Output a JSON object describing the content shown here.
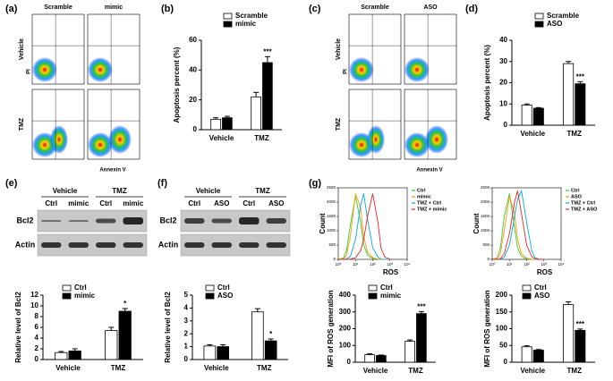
{
  "panel_labels": [
    "(a)",
    "(b)",
    "(c)",
    "(d)",
    "(e)",
    "(f)",
    "(g)"
  ],
  "flow_a": {
    "columns": [
      "Scramble",
      "mimic"
    ],
    "rows": [
      "Vehicle",
      "TMZ"
    ],
    "ylabel": "PI",
    "xlabel": "Annexin V"
  },
  "flow_c": {
    "columns": [
      "Scramble",
      "ASO"
    ],
    "rows": [
      "Vehicle",
      "TMZ"
    ],
    "ylabel": "PI",
    "xlabel": "Annexin V"
  },
  "blot_e": {
    "groups": [
      "Vehicle",
      "TMZ"
    ],
    "lanes": [
      "Ctrl",
      "mimic",
      "Ctrl",
      "mimic"
    ],
    "proteins": [
      "Bcl2",
      "Actin"
    ]
  },
  "blot_f": {
    "groups": [
      "Vehicle",
      "TMZ"
    ],
    "lanes": [
      "Ctrl",
      "ASO",
      "Ctrl",
      "ASO"
    ],
    "proteins": [
      "Bcl2",
      "Actin"
    ]
  },
  "chart_data": [
    {
      "type": "bar",
      "ylabel": "Apoptosis percent (%)",
      "categories": [
        "Vehicle",
        "TMZ"
      ],
      "series": [
        {
          "name": "Scramble",
          "color": "#ffffff",
          "values": [
            7,
            22
          ],
          "errors": [
            1,
            3
          ]
        },
        {
          "name": "mimic",
          "color": "#000000",
          "values": [
            8,
            45
          ],
          "errors": [
            1,
            4
          ]
        }
      ],
      "ylim": [
        0,
        60
      ],
      "yticks": [
        0,
        20,
        40,
        60
      ],
      "annotation": "***"
    },
    {
      "type": "bar",
      "ylabel": "Apoptosis percent (%)",
      "categories": [
        "Vehicle",
        "TMZ"
      ],
      "series": [
        {
          "name": "Scramble",
          "color": "#ffffff",
          "values": [
            9.5,
            29
          ],
          "errors": [
            0.5,
            1
          ]
        },
        {
          "name": "ASO",
          "color": "#000000",
          "values": [
            8,
            19.5
          ],
          "errors": [
            0.3,
            1
          ]
        }
      ],
      "ylim": [
        0,
        40
      ],
      "yticks": [
        0,
        10,
        20,
        30,
        40
      ],
      "annotation": "***"
    },
    {
      "type": "bar",
      "ylabel": "Relative level of Bcl2",
      "categories": [
        "Vehicle",
        "TMZ"
      ],
      "series": [
        {
          "name": "Ctrl",
          "color": "#ffffff",
          "values": [
            1.3,
            5.4
          ],
          "errors": [
            0.2,
            0.6
          ]
        },
        {
          "name": "mimic",
          "color": "#000000",
          "values": [
            1.6,
            9.0
          ],
          "errors": [
            0.4,
            0.5
          ]
        }
      ],
      "ylim": [
        0,
        12
      ],
      "yticks": [
        0,
        2,
        4,
        6,
        8,
        10,
        12
      ],
      "annotation": "*"
    },
    {
      "type": "bar",
      "ylabel": "Relative level of Bcl2",
      "categories": [
        "Vehicle",
        "TMZ"
      ],
      "series": [
        {
          "name": "Ctrl",
          "color": "#ffffff",
          "values": [
            1.05,
            3.7
          ],
          "errors": [
            0.1,
            0.25
          ]
        },
        {
          "name": "ASO",
          "color": "#000000",
          "values": [
            1.0,
            1.45
          ],
          "errors": [
            0.15,
            0.15
          ]
        }
      ],
      "ylim": [
        0,
        5
      ],
      "yticks": [
        0,
        1,
        2,
        3,
        4,
        5
      ],
      "annotation": "*"
    },
    {
      "type": "bar",
      "ylabel": "MFI of ROS generation",
      "categories": [
        "Vehicle",
        "TMZ"
      ],
      "series": [
        {
          "name": "Ctrl",
          "color": "#ffffff",
          "values": [
            45,
            125
          ],
          "errors": [
            5,
            8
          ]
        },
        {
          "name": "mimic",
          "color": "#000000",
          "values": [
            40,
            290
          ],
          "errors": [
            3,
            12
          ]
        }
      ],
      "ylim": [
        0,
        400
      ],
      "yticks": [
        0,
        100,
        200,
        300,
        400
      ],
      "annotation": "***"
    },
    {
      "type": "bar",
      "ylabel": "MFI of ROS generation",
      "categories": [
        "Vehicle",
        "TMZ"
      ],
      "series": [
        {
          "name": "Ctrl",
          "color": "#ffffff",
          "values": [
            46,
            172
          ],
          "errors": [
            3,
            8
          ]
        },
        {
          "name": "ASO",
          "color": "#000000",
          "values": [
            36,
            95
          ],
          "errors": [
            2,
            4
          ]
        }
      ],
      "ylim": [
        0,
        200
      ],
      "yticks": [
        0,
        50,
        100,
        150,
        200
      ],
      "annotation": "***"
    },
    {
      "type": "line",
      "xlabel": "ROS",
      "ylabel": "Count",
      "log_x": true,
      "x": [
        1,
        2,
        3,
        5,
        10,
        20,
        30,
        50,
        100,
        200,
        300,
        500,
        1000
      ],
      "series": [
        {
          "name": "Ctrl",
          "color": "#33cc33",
          "values": [
            0,
            50,
            300,
            1200,
            2200,
            1300,
            500,
            150,
            30,
            5,
            0,
            0,
            0
          ]
        },
        {
          "name": "mimic",
          "color": "#ff9900",
          "values": [
            0,
            20,
            150,
            800,
            2300,
            1800,
            800,
            250,
            60,
            10,
            0,
            0,
            0
          ]
        },
        {
          "name": "TMZ + Ctrl",
          "color": "#00aadd",
          "values": [
            0,
            0,
            20,
            100,
            700,
            1900,
            2300,
            1400,
            400,
            80,
            10,
            0,
            0
          ]
        },
        {
          "name": "TMZ + mimic",
          "color": "#ee2222",
          "values": [
            0,
            0,
            0,
            10,
            60,
            300,
            700,
            1500,
            2300,
            1300,
            400,
            80,
            10
          ]
        }
      ],
      "xlim": [
        1,
        10000
      ],
      "xticks": [
        {
          "value": 1,
          "label": "10⁰"
        },
        {
          "value": 10,
          "label": "10¹"
        },
        {
          "value": 100,
          "label": "10²"
        },
        {
          "value": 1000,
          "label": "10³"
        },
        {
          "value": 10000,
          "label": "10⁴"
        }
      ],
      "ylim": [
        0,
        2500
      ],
      "yticks": [
        0,
        500,
        1000,
        1500,
        2000,
        2500
      ]
    },
    {
      "type": "line",
      "xlabel": "ROS",
      "ylabel": "Count",
      "log_x": true,
      "x": [
        1,
        2,
        3,
        5,
        10,
        20,
        30,
        50,
        100,
        200,
        300,
        500,
        1000
      ],
      "series": [
        {
          "name": "Ctrl",
          "color": "#33cc33",
          "values": [
            0,
            60,
            400,
            1500,
            2300,
            1100,
            400,
            100,
            20,
            0,
            0,
            0,
            0
          ]
        },
        {
          "name": "ASO",
          "color": "#ff9900",
          "values": [
            0,
            30,
            200,
            1000,
            2200,
            1600,
            700,
            200,
            40,
            5,
            0,
            0,
            0
          ]
        },
        {
          "name": "TMZ + Ctrl",
          "color": "#00aadd",
          "values": [
            0,
            0,
            10,
            80,
            500,
            1500,
            2100,
            2400,
            1300,
            300,
            60,
            10,
            0
          ]
        },
        {
          "name": "TMZ + ASO",
          "color": "#ee2222",
          "values": [
            0,
            0,
            30,
            200,
            900,
            2000,
            2400,
            1600,
            500,
            100,
            20,
            0,
            0
          ]
        }
      ],
      "xlim": [
        1,
        10000
      ],
      "xticks": [
        {
          "value": 1,
          "label": "10⁰"
        },
        {
          "value": 10,
          "label": "10¹"
        },
        {
          "value": 100,
          "label": "10²"
        },
        {
          "value": 1000,
          "label": "10³"
        },
        {
          "value": 10000,
          "label": "10⁴"
        }
      ],
      "ylim": [
        0,
        2500
      ],
      "yticks": [
        0,
        500,
        1000,
        1500,
        2000,
        2500
      ]
    }
  ]
}
